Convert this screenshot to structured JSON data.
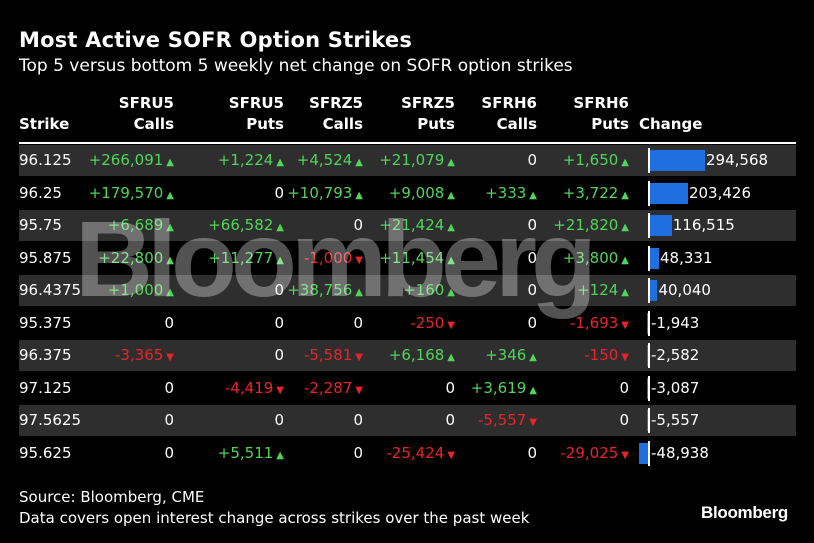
{
  "title": "Most Active SOFR Option Strikes",
  "subtitle": "Top 5 versus bottom 5 weekly net change on SOFR option strikes",
  "columns": {
    "strike": "Strike",
    "sfru5_calls": [
      "SFRU5",
      "Calls"
    ],
    "sfru5_puts": [
      "SFRU5",
      "Puts"
    ],
    "sfrz5_calls": [
      "SFRZ5",
      "Calls"
    ],
    "sfrz5_puts": [
      "SFRZ5",
      "Puts"
    ],
    "sfrh6_calls": [
      "SFRH6",
      "Calls"
    ],
    "sfrh6_puts": [
      "SFRH6",
      "Puts"
    ],
    "change": "Change"
  },
  "chart_data": {
    "type": "table",
    "columns": [
      "Strike",
      "SFRU5 Calls",
      "SFRU5 Puts",
      "SFRZ5 Calls",
      "SFRZ5 Puts",
      "SFRH6 Calls",
      "SFRH6 Puts",
      "Change"
    ],
    "rows": [
      {
        "strike": "96.125",
        "values": [
          "+266,091",
          "+1,224",
          "+4,524",
          "+21,079",
          "0",
          "+1,650"
        ],
        "change": 294568,
        "change_label": "294,568"
      },
      {
        "strike": "96.25",
        "values": [
          "+179,570",
          "0",
          "+10,793",
          "+9,008",
          "+333",
          "+3,722"
        ],
        "change": 203426,
        "change_label": "203,426"
      },
      {
        "strike": "95.75",
        "values": [
          "+6,689",
          "+66,582",
          "0",
          "+21,424",
          "0",
          "+21,820"
        ],
        "change": 116515,
        "change_label": "116,515"
      },
      {
        "strike": "95.875",
        "values": [
          "+22,800",
          "+11,277",
          "-1,000",
          "+11,454",
          "0",
          "+3,800"
        ],
        "change": 48331,
        "change_label": "48,331"
      },
      {
        "strike": "96.4375",
        "values": [
          "+1,000",
          "0",
          "+38,756",
          "+160",
          "0",
          "+124"
        ],
        "change": 40040,
        "change_label": "40,040"
      },
      {
        "strike": "95.375",
        "values": [
          "0",
          "0",
          "0",
          "-250",
          "0",
          "-1,693"
        ],
        "change": -1943,
        "change_label": "-1,943"
      },
      {
        "strike": "96.375",
        "values": [
          "-3,365",
          "0",
          "-5,581",
          "+6,168",
          "+346",
          "-150"
        ],
        "change": -2582,
        "change_label": "-2,582"
      },
      {
        "strike": "97.125",
        "values": [
          "0",
          "-4,419",
          "-2,287",
          "0",
          "+3,619",
          "0"
        ],
        "change": -3087,
        "change_label": "-3,087"
      },
      {
        "strike": "97.5625",
        "values": [
          "0",
          "0",
          "0",
          "0",
          "-5,557",
          "0"
        ],
        "change": -5557,
        "change_label": "-5,557"
      },
      {
        "strike": "95.625",
        "values": [
          "0",
          "+5,511",
          "0",
          "-25,424",
          "0",
          "-29,025"
        ],
        "change": -48938,
        "change_label": "-48,938"
      }
    ],
    "change_max": 294568,
    "colors": {
      "positive": "#4fd65a",
      "negative": "#e8242b",
      "bar": "#1f6fe0",
      "row_shade": "#2e2e2e"
    }
  },
  "watermark": "Bloomberg",
  "source": "Source: Bloomberg, CME",
  "note": "Data covers open interest change across strikes over the past week",
  "logo": "Bloomberg"
}
